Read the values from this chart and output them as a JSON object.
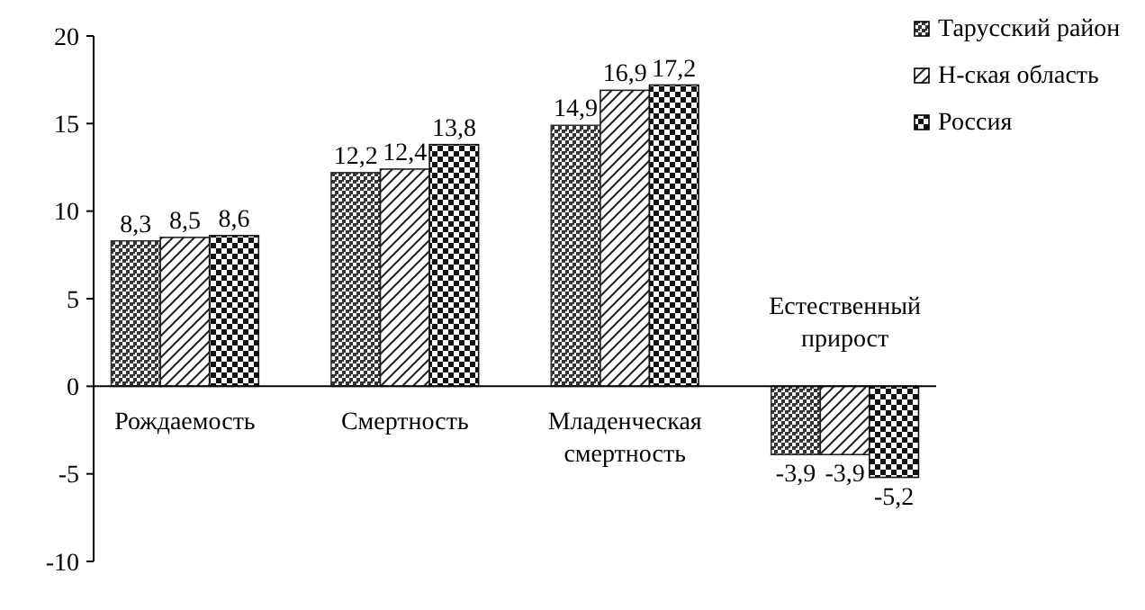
{
  "chart_data": {
    "type": "bar",
    "categories": [
      "Рождаемость",
      "Смертность",
      "Младенческая смертность",
      "Естественный прирост"
    ],
    "series": [
      {
        "name": "Тарусский район",
        "color": "#333333",
        "values": [
          8.3,
          12.2,
          14.9,
          -3.9
        ],
        "value_labels": [
          "8,3",
          "12,2",
          "14,9",
          "-3,9"
        ]
      },
      {
        "name": "Н-ская область",
        "color": "#222222",
        "values": [
          8.5,
          12.4,
          16.9,
          -3.9
        ],
        "value_labels": [
          "8,5",
          "12,4",
          "16,9",
          "-3,9"
        ]
      },
      {
        "name": "Россия",
        "color": "#111111",
        "values": [
          8.6,
          13.8,
          17.2,
          -5.2
        ],
        "value_labels": [
          "8,6",
          "13,8",
          "17,2",
          "-5,2"
        ]
      }
    ],
    "ylim": [
      -10,
      20
    ],
    "yticks": [
      -10,
      -5,
      0,
      5,
      10,
      15,
      20
    ],
    "grid": false,
    "legend": "top right"
  }
}
